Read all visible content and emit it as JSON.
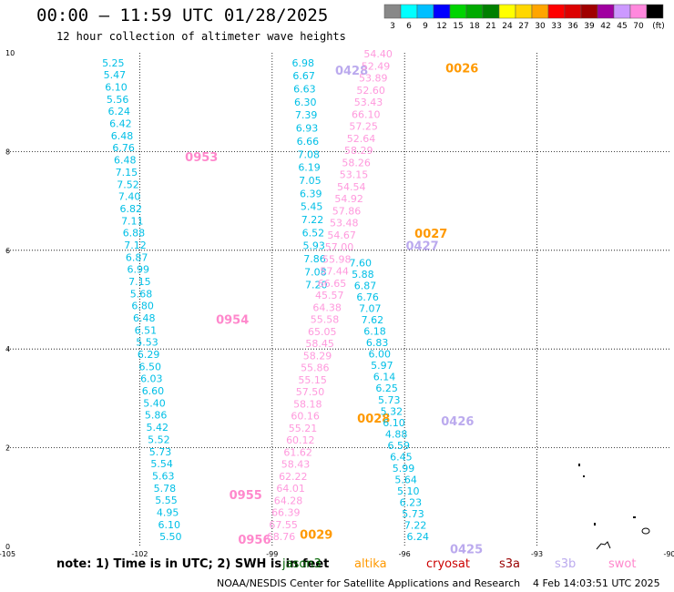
{
  "header": {
    "title": "00:00 — 11:59 UTC 01/28/2025",
    "subtitle": "12 hour collection of altimeter wave heights"
  },
  "colorbar": {
    "labels": [
      "3",
      "6",
      "9",
      "12",
      "15",
      "18",
      "21",
      "24",
      "27",
      "30",
      "33",
      "36",
      "39",
      "42",
      "45",
      "70",
      "(ft)"
    ],
    "colors": [
      "#888888",
      "#00ffff",
      "#00bfff",
      "#0000ff",
      "#00d400",
      "#00aa00",
      "#008000",
      "#ffff00",
      "#ffd700",
      "#ffa500",
      "#ff0000",
      "#dd0000",
      "#a00000",
      "#a000a0",
      "#cc99ff",
      "#ff88dd",
      "#000000"
    ]
  },
  "note": "note: 1) Time is in UTC; 2) SWH is in feet",
  "satellites": [
    {
      "name": "jason3",
      "color": "#006400"
    },
    {
      "name": "altika",
      "color": "#ff9900"
    },
    {
      "name": "cryosat",
      "color": "#cc0000"
    },
    {
      "name": "s3a",
      "color": "#990000"
    },
    {
      "name": "s3b",
      "color": "#bbaaee"
    },
    {
      "name": "swot",
      "color": "#ff88cc"
    }
  ],
  "footer": {
    "credit": "NOAA/NESDIS Center for Satellite Applications and Research",
    "generated": "4 Feb 14:03:51 UTC 2025"
  },
  "chart_data": {
    "type": "scatter",
    "title": "00:00 — 11:59 UTC 01/28/2025",
    "subtitle": "12 hour collection of altimeter wave heights",
    "xlim": [
      -105,
      -90
    ],
    "ylim": [
      0,
      10
    ],
    "x_ticks": [
      "-105",
      "-102",
      "-99",
      "-96",
      "-93",
      "-90"
    ],
    "y_ticks": [
      "0",
      "2",
      "4",
      "6",
      "8",
      "10"
    ],
    "grid": true,
    "tracks": [
      {
        "satellite": "s3a",
        "color": "#00bfe6",
        "lon_top": -102.6,
        "lon_bottom": -101.3,
        "lat_top": 9.8,
        "lat_bottom": 0.2,
        "values": [
          "5.25",
          "5.47",
          "6.10",
          "5.56",
          "6.24",
          "6.42",
          "6.48",
          "6.76",
          "6.48",
          "7.15",
          "7.52",
          "7.40",
          "6.82",
          "7.11",
          "6.88",
          "7.12",
          "6.87",
          "6.99",
          "7.15",
          "5.68",
          "6.80",
          "6.48",
          "6.51",
          "5.53",
          "6.29",
          "6.50",
          "6.03",
          "6.60",
          "5.40",
          "5.86",
          "5.42",
          "5.52",
          "5.73",
          "5.54",
          "5.63",
          "5.78",
          "5.55",
          "4.95",
          "6.10",
          "5.50"
        ],
        "pass_labels": [
          {
            "text": "0953",
            "lon": -100.6,
            "lat": 7.9,
            "color": "#ff88cc"
          },
          {
            "text": "0954",
            "lon": -99.9,
            "lat": 4.6,
            "color": "#ff88cc"
          },
          {
            "text": "0955",
            "lon": -99.6,
            "lat": 1.05,
            "color": "#ff88cc"
          },
          {
            "text": "0956",
            "lon": -99.4,
            "lat": 0.15,
            "color": "#ff88cc"
          }
        ]
      },
      {
        "satellite": "swot",
        "color": "#00bfe6",
        "lon_top": -98.3,
        "lon_bottom": -98.0,
        "lat_top": 9.8,
        "lat_bottom": 5.3,
        "values": [
          "6.98",
          "6.67",
          "6.63",
          "6.30",
          "7.39",
          "6.93",
          "6.66",
          "7.08",
          "6.19",
          "7.05",
          "6.39",
          "5.45",
          "7.22",
          "6.52",
          "5.93",
          "7.86",
          "7.08",
          "7.20"
        ],
        "pass_labels": [
          {
            "text": "0428",
            "lon": -97.2,
            "lat": 9.65,
            "color": "#bbaaee"
          }
        ]
      },
      {
        "satellite": "altika",
        "color": "#ff99dd",
        "lon_top": -96.6,
        "lon_bottom": -98.8,
        "lat_top": 9.98,
        "lat_bottom": 0.2,
        "values": [
          "54.40",
          "52.49",
          "53.89",
          "52.60",
          "53.43",
          "66.10",
          "57.25",
          "52.64",
          "58.29",
          "58.26",
          "53.15",
          "54.54",
          "54.92",
          "57.86",
          "53.48",
          "54.67",
          "57.00",
          "55.98",
          "57.44",
          "66.65",
          "45.57",
          "64.38",
          "55.58",
          "65.05",
          "58.45",
          "58.29",
          "55.86",
          "55.15",
          "57.50",
          "58.18",
          "60.16",
          "55.21",
          "60.12",
          "61.62",
          "58.43",
          "62.22",
          "64.01",
          "64.28",
          "66.39",
          "67.55",
          "68.76"
        ],
        "pass_labels": [
          {
            "text": "0026",
            "lon": -94.7,
            "lat": 9.7,
            "color": "#ff9900"
          },
          {
            "text": "0027",
            "lon": -95.4,
            "lat": 6.35,
            "color": "#ff9900"
          },
          {
            "text": "0028",
            "lon": -96.7,
            "lat": 2.6,
            "color": "#ff9900"
          },
          {
            "text": "0029",
            "lon": -98.0,
            "lat": 0.25,
            "color": "#ff9900"
          }
        ]
      },
      {
        "satellite": "s3b",
        "color": "#00bfe6",
        "lon_top": -97.0,
        "lon_bottom": -95.7,
        "lat_top": 5.75,
        "lat_bottom": 0.2,
        "values": [
          "7.60",
          "5.88",
          "6.87",
          "6.76",
          "7.07",
          "7.62",
          "6.18",
          "6.83",
          "6.00",
          "5.97",
          "6.14",
          "6.25",
          "5.73",
          "5.32",
          "6.10",
          "4.88",
          "6.59",
          "6.45",
          "5.99",
          "5.64",
          "5.10",
          "6.23",
          "5.73",
          "7.22",
          "6.24"
        ],
        "pass_labels": [
          {
            "text": "0427",
            "lon": -95.6,
            "lat": 6.1,
            "color": "#bbaaee"
          },
          {
            "text": "0426",
            "lon": -94.8,
            "lat": 2.55,
            "color": "#bbaaee"
          },
          {
            "text": "0425",
            "lon": -94.6,
            "lat": -0.05,
            "color": "#bbaaee"
          }
        ]
      }
    ]
  }
}
